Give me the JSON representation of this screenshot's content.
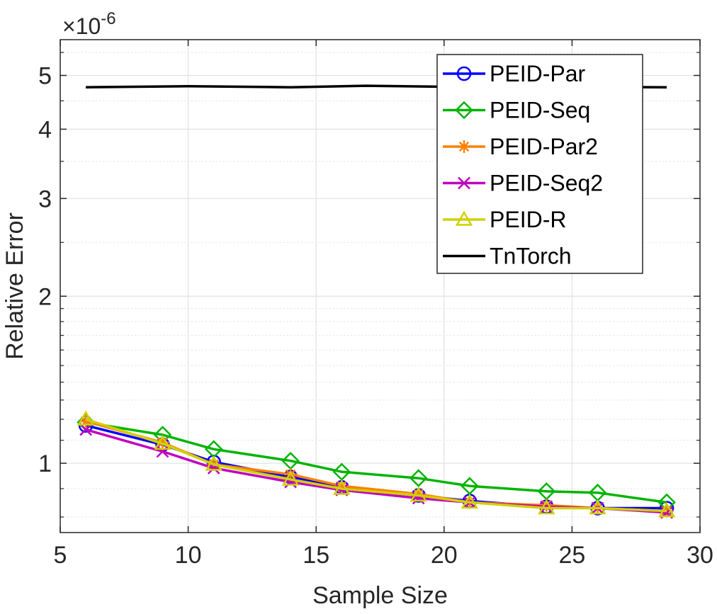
{
  "chart_data": {
    "type": "line",
    "title": "",
    "xlabel": "Sample Size",
    "ylabel": "Relative Error",
    "y_exponent_label": "×10",
    "y_exponent_power": "-6",
    "y_scale": "log",
    "xlim": [
      5,
      30
    ],
    "ylim": [
      0.75,
      5.8
    ],
    "grid": true,
    "legend_position": "top-right",
    "x_ticks": [
      5,
      10,
      15,
      20,
      25,
      30
    ],
    "x_tick_labels": [
      "5",
      "10",
      "15",
      "20",
      "25",
      "30"
    ],
    "y_ticks": [
      1,
      2,
      3,
      4,
      5
    ],
    "y_tick_labels": [
      "1",
      "2",
      "3",
      "4",
      "5"
    ],
    "y_minor_ticks": [
      0.8,
      0.9,
      1.1,
      1.2,
      1.3,
      1.4,
      1.5,
      1.6,
      1.7,
      1.8,
      1.9,
      2.5,
      3.5,
      4.5,
      5.5
    ],
    "series": [
      {
        "name": "PEID-Par",
        "color": "#0000ff",
        "marker": "circle",
        "x": [
          6,
          9,
          11,
          14,
          16,
          19,
          21,
          24,
          26,
          28.7
        ],
        "values": [
          1.17,
          1.08,
          1.005,
          0.945,
          0.905,
          0.875,
          0.855,
          0.835,
          0.83,
          0.83
        ]
      },
      {
        "name": "PEID-Seq",
        "color": "#00b400",
        "marker": "diamond",
        "x": [
          6,
          9,
          11,
          14,
          16,
          19,
          21,
          24,
          26,
          28.7
        ],
        "values": [
          1.185,
          1.125,
          1.06,
          1.01,
          0.965,
          0.94,
          0.91,
          0.89,
          0.885,
          0.85
        ]
      },
      {
        "name": "PEID-Par2",
        "color": "#ff8000",
        "marker": "asterisk",
        "x": [
          6,
          9,
          11,
          14,
          16,
          19,
          21,
          24,
          26,
          28.7
        ],
        "values": [
          1.19,
          1.09,
          0.995,
          0.955,
          0.91,
          0.88,
          0.85,
          0.84,
          0.83,
          0.82
        ]
      },
      {
        "name": "PEID-Seq2",
        "color": "#c000c0",
        "marker": "x",
        "x": [
          6,
          9,
          11,
          14,
          16,
          19,
          21,
          24,
          26,
          28.7
        ],
        "values": [
          1.15,
          1.05,
          0.98,
          0.925,
          0.895,
          0.865,
          0.85,
          0.835,
          0.83,
          0.815
        ]
      },
      {
        "name": "PEID-R",
        "color": "#d0d000",
        "marker": "triangle",
        "x": [
          6,
          9,
          11,
          14,
          16,
          19,
          21,
          24,
          26,
          28.7
        ],
        "values": [
          1.2,
          1.085,
          0.995,
          0.935,
          0.9,
          0.875,
          0.85,
          0.83,
          0.83,
          0.82
        ]
      },
      {
        "name": "TnTorch",
        "color": "#000000",
        "marker": "none",
        "x": [
          6,
          10,
          14,
          17,
          20,
          24,
          28.7
        ],
        "values": [
          4.76,
          4.78,
          4.76,
          4.79,
          4.77,
          4.77,
          4.76
        ]
      }
    ]
  }
}
